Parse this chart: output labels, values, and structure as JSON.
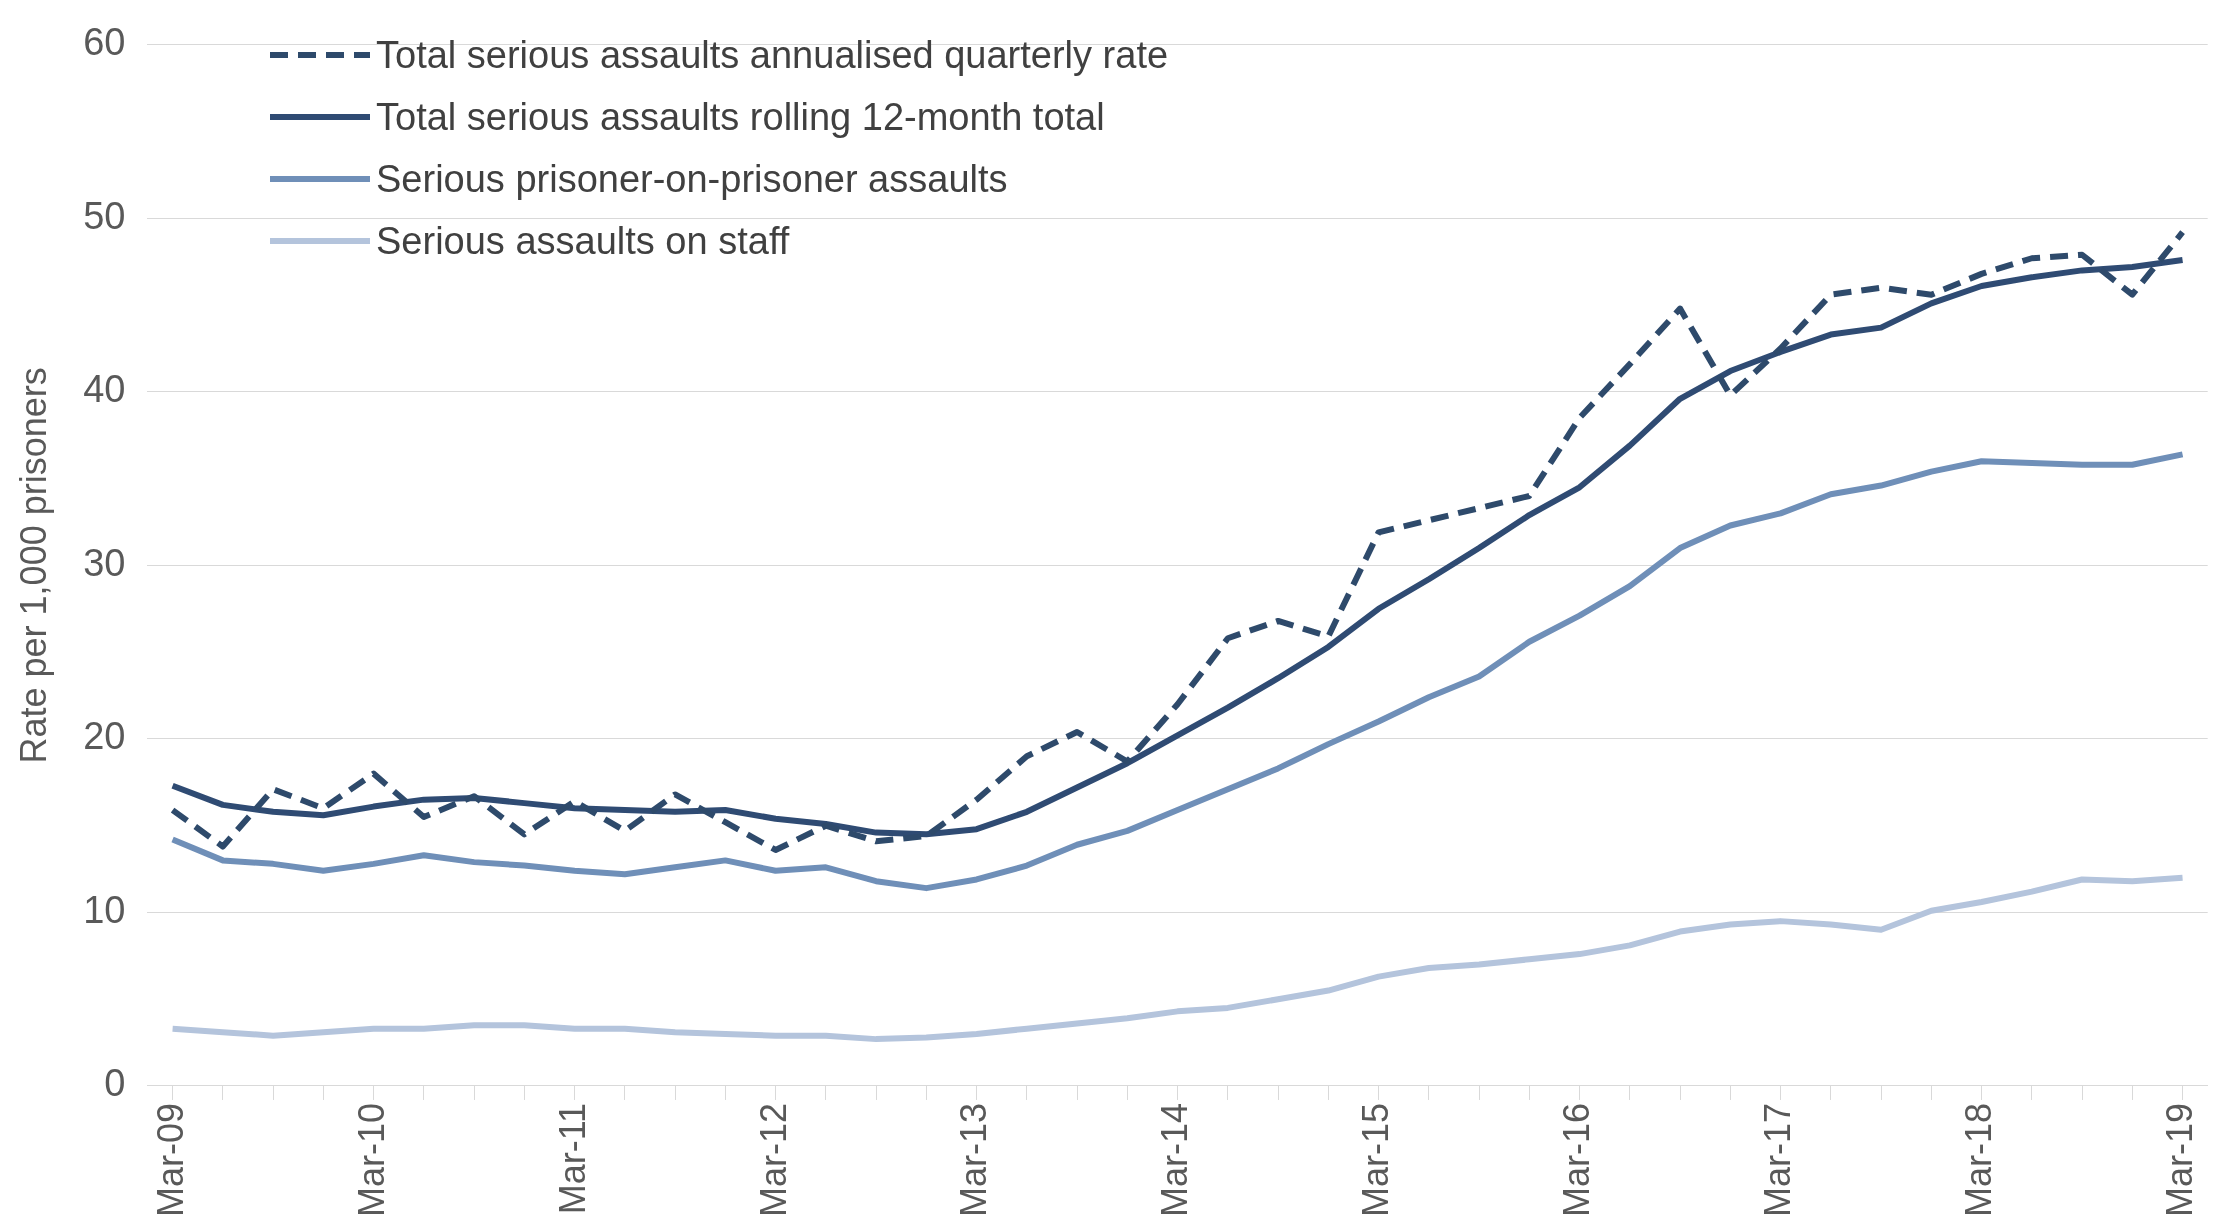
{
  "chart_data": {
    "type": "line",
    "ylabel": "Rate per 1,000 prisoners",
    "categories": [
      "Mar-09",
      null,
      null,
      null,
      "Mar-10",
      null,
      null,
      null,
      "Mar-11",
      null,
      null,
      null,
      "Mar-12",
      null,
      null,
      null,
      "Mar-13",
      null,
      null,
      null,
      "Mar-14",
      null,
      null,
      null,
      "Mar-15",
      null,
      null,
      null,
      "Mar-16",
      null,
      null,
      null,
      "Mar-17",
      null,
      null,
      null,
      "Mar-18",
      null,
      null,
      null,
      "Mar-19"
    ],
    "series": [
      {
        "name": "Total serious assaults annualised quarterly rate",
        "color": "#2e4a6b",
        "line_style": "dashed",
        "values": [
          15.9,
          13.8,
          17.1,
          16.0,
          18.0,
          15.5,
          16.7,
          14.5,
          16.4,
          14.7,
          16.8,
          15.2,
          13.6,
          15.0,
          14.1,
          14.4,
          16.5,
          19.0,
          20.4,
          18.7,
          22.0,
          25.8,
          26.8,
          25.9,
          31.9,
          32.6,
          33.3,
          34.0,
          38.5,
          41.6,
          44.8,
          39.8,
          42.5,
          45.6,
          46.0,
          45.6,
          46.8,
          47.7,
          47.9,
          45.6,
          49.2
        ]
      },
      {
        "name": "Total serious assaults rolling 12-month total",
        "color": "#2f4b73",
        "line_style": "solid",
        "values": [
          17.3,
          16.2,
          15.8,
          15.6,
          16.1,
          16.5,
          16.6,
          16.3,
          16.0,
          15.9,
          15.8,
          15.9,
          15.4,
          15.1,
          14.6,
          14.5,
          14.8,
          15.8,
          17.2,
          18.6,
          20.2,
          21.8,
          23.5,
          25.3,
          27.5,
          29.2,
          31.0,
          32.9,
          34.5,
          36.9,
          39.6,
          41.2,
          42.3,
          43.3,
          43.7,
          45.1,
          46.1,
          46.6,
          47.0,
          47.2,
          47.6
        ]
      },
      {
        "name": "Serious prisoner-on-prisoner assaults",
        "color": "#6f8fb8",
        "line_style": "solid",
        "values": [
          14.2,
          13.0,
          12.8,
          12.4,
          12.8,
          13.3,
          12.9,
          12.7,
          12.4,
          12.2,
          12.6,
          13.0,
          12.4,
          12.6,
          11.8,
          11.4,
          11.9,
          12.7,
          13.9,
          14.7,
          15.9,
          17.1,
          18.3,
          19.7,
          21.0,
          22.4,
          23.6,
          25.6,
          27.1,
          28.8,
          31.0,
          32.3,
          33.0,
          34.1,
          34.6,
          35.4,
          36.0,
          35.9,
          35.8,
          35.8,
          36.4
        ]
      },
      {
        "name": "Serious assaults on staff",
        "color": "#b4c4dc",
        "line_style": "solid",
        "values": [
          3.3,
          3.1,
          2.9,
          3.1,
          3.3,
          3.3,
          3.5,
          3.5,
          3.3,
          3.3,
          3.1,
          3.0,
          2.9,
          2.9,
          2.7,
          2.8,
          3.0,
          3.3,
          3.6,
          3.9,
          4.3,
          4.5,
          5.0,
          5.5,
          6.3,
          6.8,
          7.0,
          7.3,
          7.6,
          8.1,
          8.9,
          9.3,
          9.5,
          9.3,
          9.0,
          10.1,
          10.6,
          11.2,
          11.9,
          11.8,
          12.0
        ]
      }
    ],
    "ylim": [
      0,
      60
    ],
    "yticks": [
      0,
      10,
      20,
      30,
      40,
      50,
      60
    ],
    "grid": "y",
    "legend": "top left",
    "marker": "none"
  }
}
